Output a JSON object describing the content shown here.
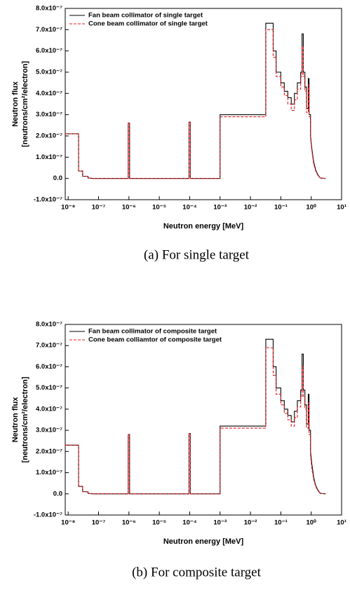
{
  "chart_data": [
    {
      "type": "line",
      "caption": "(a) For single target",
      "xlabel": "Neutron energy [MeV]",
      "ylabel": [
        "Neutron flux",
        "[neutrons/cm²/electron]"
      ],
      "xscale": "log",
      "xlim": [
        8e-09,
        10
      ],
      "ylim": [
        -1e-07,
        8e-07
      ],
      "legend": "upper left",
      "xticks": [
        {
          "value": 1e-08,
          "label": "10⁻⁸"
        },
        {
          "value": 1e-07,
          "label": "10⁻⁷"
        },
        {
          "value": 1e-06,
          "label": "10⁻⁶"
        },
        {
          "value": 1e-05,
          "label": "10⁻⁵"
        },
        {
          "value": 0.0001,
          "label": "10⁻⁴"
        },
        {
          "value": 0.001,
          "label": "10⁻³"
        },
        {
          "value": 0.01,
          "label": "10⁻²"
        },
        {
          "value": 0.1,
          "label": "10⁻¹"
        },
        {
          "value": 1,
          "label": "10⁰"
        },
        {
          "value": 10,
          "label": "10¹"
        }
      ],
      "yticks": [
        {
          "value": -1e-07,
          "label": "-1.0x10⁻⁷"
        },
        {
          "value": 0,
          "label": "0.0"
        },
        {
          "value": 1e-07,
          "label": "1.0x10⁻⁷"
        },
        {
          "value": 2e-07,
          "label": "2.0x10⁻⁷"
        },
        {
          "value": 3e-07,
          "label": "3.0x10⁻⁷"
        },
        {
          "value": 4e-07,
          "label": "4.0x10⁻⁷"
        },
        {
          "value": 5e-07,
          "label": "5.0x10⁻⁷"
        },
        {
          "value": 6e-07,
          "label": "6.0x10⁻⁷"
        },
        {
          "value": 7e-07,
          "label": "7.0x10⁻⁷"
        },
        {
          "value": 8e-07,
          "label": "8.0x10⁻⁷"
        }
      ],
      "x": [
        8e-09,
        2.2e-08,
        2.2e-08,
        3e-08,
        3e-08,
        4.5e-08,
        4.5e-08,
        7e-08,
        9.5e-07,
        9.5e-07,
        1.05e-06,
        1.05e-06,
        9.5e-05,
        9.5e-05,
        0.000105,
        0.000105,
        0.001,
        0.001,
        0.032,
        0.032,
        0.056,
        0.056,
        0.07,
        0.07,
        0.1,
        0.1,
        0.13,
        0.13,
        0.17,
        0.17,
        0.22,
        0.22,
        0.28,
        0.28,
        0.35,
        0.35,
        0.45,
        0.45,
        0.5,
        0.5,
        0.55,
        0.55,
        0.62,
        0.62,
        0.7,
        0.7,
        0.8,
        0.8,
        0.85,
        0.85,
        0.95,
        0.95,
        1.05,
        1.2,
        1.4,
        1.7,
        2,
        3
      ],
      "series": [
        {
          "name": "Fan beam collimator of single target",
          "color": "#000000",
          "dash": "solid",
          "values": [
            2.1e-07,
            2.1e-07,
            3.5e-08,
            3.5e-08,
            1e-08,
            1e-08,
            2e-09,
            0,
            0,
            2.6e-07,
            2.6e-07,
            0,
            0,
            2.65e-07,
            2.65e-07,
            0,
            0,
            3e-07,
            3e-07,
            7.3e-07,
            7.3e-07,
            6e-07,
            6e-07,
            5e-07,
            5e-07,
            4.5e-07,
            4.5e-07,
            4.1e-07,
            4.1e-07,
            3.8e-07,
            3.8e-07,
            3.5e-07,
            3.5e-07,
            4e-07,
            4e-07,
            4.5e-07,
            4.5e-07,
            5e-07,
            5e-07,
            6.8e-07,
            6.8e-07,
            5e-07,
            5e-07,
            4.3e-07,
            4.3e-07,
            3.3e-07,
            3.3e-07,
            4.7e-07,
            4.7e-07,
            3e-07,
            3e-07,
            2e-07,
            1.4e-07,
            8e-08,
            4e-08,
            1.5e-08,
            2e-09,
            0
          ]
        },
        {
          "name": "Cone beam collimator of single target",
          "color": "#e8191e",
          "dash": "dashed",
          "values": [
            2.1e-07,
            2.1e-07,
            3.5e-08,
            3.5e-08,
            1e-08,
            1e-08,
            2e-09,
            0,
            0,
            2.6e-07,
            2.6e-07,
            0,
            0,
            2.65e-07,
            2.65e-07,
            0,
            0,
            2.9e-07,
            2.9e-07,
            7e-07,
            7e-07,
            5.7e-07,
            5.7e-07,
            4.8e-07,
            4.8e-07,
            4.3e-07,
            4.3e-07,
            3.9e-07,
            3.9e-07,
            3.5e-07,
            3.5e-07,
            3.2e-07,
            3.2e-07,
            3.7e-07,
            3.7e-07,
            4.2e-07,
            4.2e-07,
            4.8e-07,
            4.8e-07,
            6.2e-07,
            6.2e-07,
            4.8e-07,
            4.8e-07,
            4.1e-07,
            4.1e-07,
            3.1e-07,
            3.1e-07,
            4.4e-07,
            4.4e-07,
            2.9e-07,
            2.9e-07,
            1.9e-07,
            1.3e-07,
            7e-08,
            3.5e-08,
            1.2e-08,
            2e-09,
            0
          ]
        }
      ]
    },
    {
      "type": "line",
      "caption": "(b) For composite target",
      "xlabel": "Neutron energy [MeV]",
      "ylabel": [
        "Neutron flux",
        "[neutrons/cm²/electron]"
      ],
      "xscale": "log",
      "xlim": [
        8e-09,
        10
      ],
      "ylim": [
        -1e-07,
        8e-07
      ],
      "legend": "upper left",
      "xticks": [
        {
          "value": 1e-08,
          "label": "10⁻⁸"
        },
        {
          "value": 1e-07,
          "label": "10⁻⁷"
        },
        {
          "value": 1e-06,
          "label": "10⁻⁶"
        },
        {
          "value": 1e-05,
          "label": "10⁻⁵"
        },
        {
          "value": 0.0001,
          "label": "10⁻⁴"
        },
        {
          "value": 0.001,
          "label": "10⁻³"
        },
        {
          "value": 0.01,
          "label": "10⁻²"
        },
        {
          "value": 0.1,
          "label": "10⁻¹"
        },
        {
          "value": 1,
          "label": "10⁰"
        },
        {
          "value": 10,
          "label": "10¹"
        }
      ],
      "yticks": [
        {
          "value": -1e-07,
          "label": "-1.0x10⁻⁷"
        },
        {
          "value": 0,
          "label": "0.0"
        },
        {
          "value": 1e-07,
          "label": "1.0x10⁻⁷"
        },
        {
          "value": 2e-07,
          "label": "2.0x10⁻⁷"
        },
        {
          "value": 3e-07,
          "label": "3.0x10⁻⁷"
        },
        {
          "value": 4e-07,
          "label": "4.0x10⁻⁷"
        },
        {
          "value": 5e-07,
          "label": "5.0x10⁻⁷"
        },
        {
          "value": 6e-07,
          "label": "6.0x10⁻⁷"
        },
        {
          "value": 7e-07,
          "label": "7.0x10⁻⁷"
        },
        {
          "value": 8e-07,
          "label": "8.0x10⁻⁷"
        }
      ],
      "x": [
        8e-09,
        2.2e-08,
        2.2e-08,
        3e-08,
        3e-08,
        4.5e-08,
        4.5e-08,
        7e-08,
        9.5e-07,
        9.5e-07,
        1.05e-06,
        1.05e-06,
        9.5e-05,
        9.5e-05,
        0.000105,
        0.000105,
        0.001,
        0.001,
        0.032,
        0.032,
        0.056,
        0.056,
        0.07,
        0.07,
        0.1,
        0.1,
        0.13,
        0.13,
        0.17,
        0.17,
        0.22,
        0.22,
        0.28,
        0.28,
        0.35,
        0.35,
        0.45,
        0.45,
        0.5,
        0.5,
        0.55,
        0.55,
        0.62,
        0.62,
        0.7,
        0.7,
        0.8,
        0.8,
        0.85,
        0.85,
        0.95,
        0.95,
        1.05,
        1.2,
        1.4,
        1.7,
        2,
        3
      ],
      "series": [
        {
          "name": "Fan beam collimator of composite target",
          "color": "#000000",
          "dash": "solid",
          "values": [
            2.3e-07,
            2.3e-07,
            3.5e-08,
            3.5e-08,
            1e-08,
            1e-08,
            2e-09,
            0,
            0,
            2.8e-07,
            2.8e-07,
            0,
            0,
            2.85e-07,
            2.85e-07,
            0,
            0,
            3.2e-07,
            3.2e-07,
            7.3e-07,
            7.3e-07,
            6e-07,
            6e-07,
            5e-07,
            5e-07,
            4.4e-07,
            4.4e-07,
            4e-07,
            4e-07,
            3.7e-07,
            3.7e-07,
            3.4e-07,
            3.4e-07,
            3.9e-07,
            3.9e-07,
            4.4e-07,
            4.4e-07,
            4.9e-07,
            4.9e-07,
            6.6e-07,
            6.6e-07,
            4.9e-07,
            4.9e-07,
            4.2e-07,
            4.2e-07,
            3.3e-07,
            3.3e-07,
            4.7e-07,
            4.7e-07,
            3e-07,
            3e-07,
            2e-07,
            1.4e-07,
            8e-08,
            4e-08,
            1.5e-08,
            2e-09,
            0
          ]
        },
        {
          "name": "Cone beam colliamtor of composite target",
          "color": "#e8191e",
          "dash": "dashed",
          "values": [
            2.3e-07,
            2.3e-07,
            3.5e-08,
            3.5e-08,
            1e-08,
            1e-08,
            2e-09,
            0,
            0,
            2.8e-07,
            2.8e-07,
            0,
            0,
            2.85e-07,
            2.85e-07,
            0,
            0,
            3.1e-07,
            3.1e-07,
            6.9e-07,
            6.9e-07,
            5.6e-07,
            5.6e-07,
            4.7e-07,
            4.7e-07,
            4.2e-07,
            4.2e-07,
            3.8e-07,
            3.8e-07,
            3.5e-07,
            3.5e-07,
            3.2e-07,
            3.2e-07,
            3.6e-07,
            3.6e-07,
            4.1e-07,
            4.1e-07,
            4.6e-07,
            4.6e-07,
            6e-07,
            6e-07,
            4.6e-07,
            4.6e-07,
            4e-07,
            4e-07,
            3.1e-07,
            3.1e-07,
            4.3e-07,
            4.3e-07,
            2.8e-07,
            2.8e-07,
            1.8e-07,
            1.2e-07,
            7e-08,
            3.5e-08,
            1.2e-08,
            2e-09,
            0
          ]
        }
      ]
    }
  ]
}
